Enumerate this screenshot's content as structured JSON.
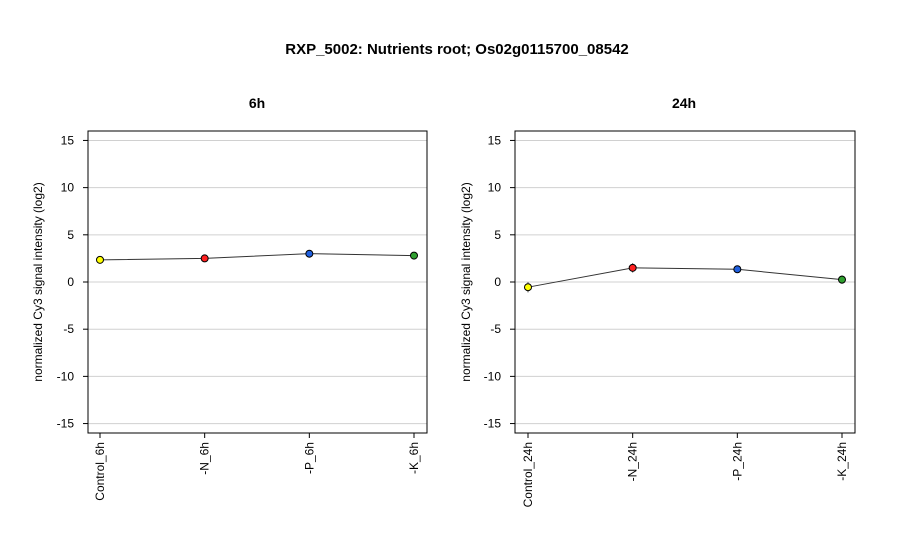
{
  "title": "RXP_5002: Nutrients root; Os02g0115700_08542",
  "chart_data": [
    {
      "type": "line",
      "title": "6h",
      "xlabel": "",
      "ylabel": "normalized Cy3 signal intensity (log2)",
      "ylim": [
        -16,
        16
      ],
      "yticks": [
        15,
        10,
        5,
        0,
        -5,
        -10,
        -15
      ],
      "grid": true,
      "categories": [
        "Control_6h",
        "-N_6h",
        "-P_6h",
        "-K_6h"
      ],
      "values": [
        2.35,
        2.5,
        3.0,
        2.8
      ],
      "errors": [
        0.15,
        0.15,
        0.1,
        0.15
      ],
      "colors": [
        "#ffff00",
        "#ff2020",
        "#2060e0",
        "#30a030"
      ]
    },
    {
      "type": "line",
      "title": "24h",
      "xlabel": "",
      "ylabel": "normalized Cy3 signal intensity (log2)",
      "ylim": [
        -16,
        16
      ],
      "yticks": [
        15,
        10,
        5,
        0,
        -5,
        -10,
        -15
      ],
      "grid": true,
      "categories": [
        "Control_24h",
        "-N_24h",
        "-P_24h",
        "-K_24h"
      ],
      "values": [
        -0.55,
        1.5,
        1.35,
        0.25
      ],
      "errors": [
        0.55,
        0.5,
        0.25,
        0.45
      ],
      "colors": [
        "#ffff00",
        "#ff2020",
        "#2060e0",
        "#30a030"
      ]
    }
  ]
}
